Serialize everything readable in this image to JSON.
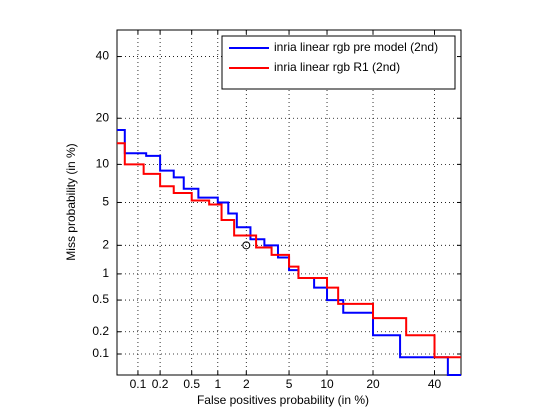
{
  "chart_data": {
    "type": "line",
    "step": true,
    "xlabel": "False positives probability (in %)",
    "ylabel": "Miss probability (in %)",
    "xscale": "probit",
    "yscale": "probit",
    "xlim": [
      0.05,
      50
    ],
    "ylim": [
      0.05,
      50
    ],
    "xticks": [
      0.1,
      0.2,
      0.5,
      1,
      2,
      5,
      10,
      20,
      40
    ],
    "yticks": [
      0.1,
      0.2,
      0.5,
      1,
      2,
      5,
      10,
      20,
      40
    ],
    "grid": true,
    "legend": "top-right",
    "series": [
      {
        "name": "inria linear rgb pre model (2nd)",
        "color": "#0000ff",
        "x": [
          0.05,
          0.065,
          0.13,
          0.2,
          0.3,
          0.4,
          0.6,
          1.0,
          1.3,
          1.6,
          2.2,
          3,
          4,
          5,
          6,
          8,
          10,
          13,
          20,
          28,
          45,
          50
        ],
        "values": [
          17,
          12,
          11.5,
          9,
          8,
          6.5,
          5.5,
          5,
          4,
          3,
          2.3,
          2,
          1.5,
          1.1,
          0.9,
          0.7,
          0.5,
          0.35,
          0.18,
          0.09,
          0.05,
          0.05
        ]
      },
      {
        "name": "inria linear rgb R1 (2nd)",
        "color": "#ff0000",
        "x": [
          0.05,
          0.065,
          0.12,
          0.2,
          0.3,
          0.5,
          0.8,
          1.1,
          1.5,
          2.5,
          3.5,
          5,
          6,
          10,
          12,
          20,
          30,
          40,
          50
        ],
        "values": [
          14,
          10,
          8.5,
          6.8,
          6,
          5.2,
          4.8,
          3.5,
          2.5,
          1.9,
          1.6,
          1.2,
          0.9,
          0.7,
          0.45,
          0.3,
          0.18,
          0.09,
          0.09
        ]
      }
    ],
    "marker": {
      "x": 2,
      "y": 2
    }
  }
}
